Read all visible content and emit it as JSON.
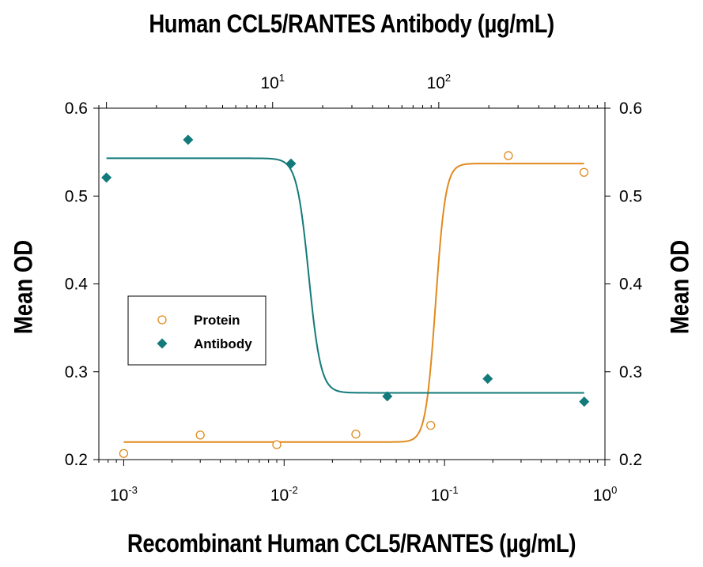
{
  "chart_data": {
    "type": "scatter",
    "title_top": "Human CCL5/RANTES Antibody (µg/mL)",
    "xlabel": "Recombinant Human CCL5/RANTES (µg/mL)",
    "ylabel_left": "Mean OD",
    "ylabel_right": "Mean OD",
    "x_bottom": {
      "scale": "log",
      "lim": [
        0.0007,
        1.0
      ],
      "ticks": [
        {
          "value": 0.001,
          "base": "10",
          "exp": "-3"
        },
        {
          "value": 0.01,
          "base": "10",
          "exp": "-2"
        },
        {
          "value": 0.1,
          "base": "10",
          "exp": "-1"
        },
        {
          "value": 1.0,
          "base": "10",
          "exp": "0"
        }
      ]
    },
    "x_top": {
      "scale": "log",
      "lim": [
        0.9,
        1000.0
      ],
      "ticks": [
        {
          "value": 10,
          "base": "10",
          "exp": "1"
        },
        {
          "value": 100,
          "base": "10",
          "exp": "2"
        }
      ]
    },
    "y": {
      "lim": [
        0.2,
        0.6
      ],
      "ticks": [
        {
          "value": 0.2,
          "label": "0.2"
        },
        {
          "value": 0.3,
          "label": "0.3"
        },
        {
          "value": 0.4,
          "label": "0.4"
        },
        {
          "value": 0.5,
          "label": "0.5"
        },
        {
          "value": 0.6,
          "label": "0.6"
        }
      ]
    },
    "series": [
      {
        "name": "Protein",
        "axis": "bottom",
        "marker": "open-circle",
        "color": "#e08a1e",
        "points": [
          {
            "x": 0.001,
            "y": 0.207
          },
          {
            "x": 0.003,
            "y": 0.228
          },
          {
            "x": 0.009,
            "y": 0.217
          },
          {
            "x": 0.028,
            "y": 0.229
          },
          {
            "x": 0.082,
            "y": 0.239
          },
          {
            "x": 0.25,
            "y": 0.546
          },
          {
            "x": 0.74,
            "y": 0.527
          }
        ],
        "fit": {
          "bottom": 0.22,
          "top": 0.537,
          "ec50": 0.088,
          "hill": 14,
          "x_range": [
            0.001,
            0.74
          ]
        }
      },
      {
        "name": "Antibody",
        "axis": "top",
        "marker": "filled-diamond",
        "color": "#127a7a",
        "points": [
          {
            "x": 1.0,
            "y": 0.521
          },
          {
            "x": 3.1,
            "y": 0.564
          },
          {
            "x": 12.9,
            "y": 0.537
          },
          {
            "x": 49,
            "y": 0.272
          },
          {
            "x": 197,
            "y": 0.292
          },
          {
            "x": 750,
            "y": 0.266
          }
        ],
        "fit": {
          "bottom": 0.276,
          "top": 0.543,
          "ec50": 16.5,
          "hill": -12,
          "x_range": [
            1.0,
            750
          ]
        }
      }
    ],
    "legend": {
      "position": "center-left",
      "entries": [
        {
          "label": "Protein",
          "marker": "open-circle"
        },
        {
          "label": "Antibody",
          "marker": "filled-diamond"
        }
      ]
    }
  }
}
